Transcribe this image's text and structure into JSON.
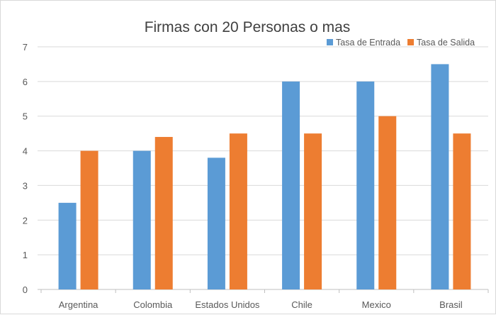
{
  "chart_data": {
    "type": "bar",
    "title": "Firmas con 20 Personas o mas",
    "xlabel": "",
    "ylabel": "",
    "categories": [
      "Argentina",
      "Colombia",
      "Estados Unidos",
      "Chile",
      "Mexico",
      "Brasil"
    ],
    "series": [
      {
        "name": "Tasa de Entrada",
        "values": [
          2.5,
          4,
          3.8,
          6,
          6,
          6.5
        ],
        "color": "#5b9bd5"
      },
      {
        "name": "Tasa de Salida",
        "values": [
          4,
          4.4,
          4.5,
          4.5,
          5,
          4.5
        ],
        "color": "#ed7d31"
      }
    ],
    "ylim": [
      0,
      7
    ],
    "yticks": [
      0,
      1,
      2,
      3,
      4,
      5,
      6,
      7
    ],
    "grid": true,
    "legend_position": "top-right"
  }
}
